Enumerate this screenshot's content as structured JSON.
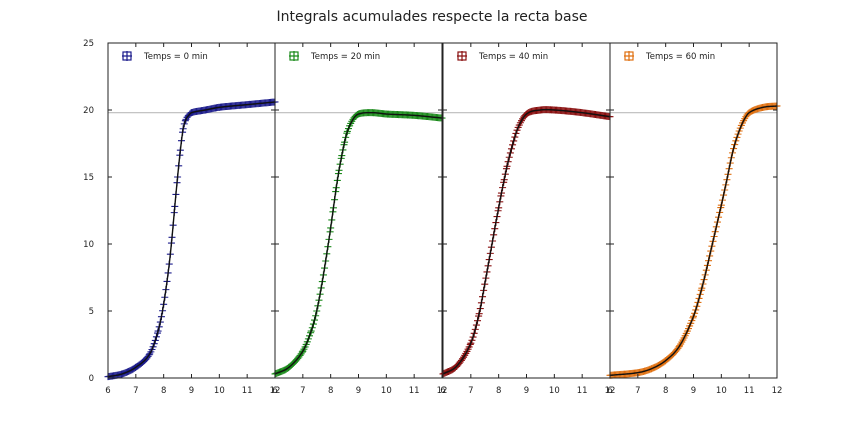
{
  "chart_data": {
    "type": "scatter",
    "title": "Integrals acumulades respecte la recta base",
    "xlabel": "",
    "ylabel": "",
    "ylim": [
      0,
      25
    ],
    "yticks": [
      0,
      5,
      10,
      15,
      20,
      25
    ],
    "xticks": [
      6,
      7,
      8,
      9,
      10,
      11,
      12
    ],
    "baseline_y": 19.8,
    "grid": false,
    "legend_placement": "top-left",
    "panels": [
      {
        "legend": "Temps = 0 min",
        "color": "#1c1c8c",
        "xlim": [
          6,
          12
        ],
        "x": [
          6.0,
          6.5,
          7.0,
          7.5,
          7.8,
          8.0,
          8.2,
          8.3,
          8.4,
          8.5,
          8.6,
          8.7,
          8.8,
          8.9,
          9.0,
          9.5,
          10.0,
          11.0,
          12.0
        ],
        "y": [
          0.1,
          0.3,
          0.8,
          1.8,
          3.5,
          5.5,
          8.5,
          10.5,
          12.8,
          15.0,
          17.0,
          18.6,
          19.3,
          19.6,
          19.8,
          20.0,
          20.2,
          20.4,
          20.6
        ]
      },
      {
        "legend": "Temps = 20 min",
        "color": "#1a8a1a",
        "xlim": [
          6,
          12
        ],
        "x": [
          6.0,
          6.5,
          7.0,
          7.3,
          7.5,
          7.7,
          7.9,
          8.0,
          8.1,
          8.2,
          8.3,
          8.4,
          8.5,
          8.6,
          8.8,
          9.0,
          9.5,
          10.0,
          11.0,
          12.0
        ],
        "y": [
          0.3,
          0.8,
          2.0,
          3.5,
          5.0,
          7.2,
          9.8,
          11.2,
          12.7,
          14.2,
          15.5,
          16.6,
          17.6,
          18.4,
          19.3,
          19.7,
          19.8,
          19.7,
          19.6,
          19.4
        ]
      },
      {
        "legend": "Temps = 40 min",
        "color": "#8a1010",
        "xlim": [
          6,
          12
        ],
        "x": [
          6.0,
          6.5,
          7.0,
          7.3,
          7.5,
          7.7,
          7.9,
          8.0,
          8.1,
          8.2,
          8.3,
          8.5,
          8.7,
          9.0,
          9.5,
          10.0,
          11.0,
          12.0
        ],
        "y": [
          0.3,
          0.9,
          2.6,
          4.8,
          7.0,
          9.3,
          11.6,
          12.7,
          13.8,
          14.8,
          15.8,
          17.4,
          18.7,
          19.7,
          20.0,
          20.0,
          19.8,
          19.5
        ]
      },
      {
        "legend": "Temps = 60 min",
        "color": "#e07010",
        "xlim": [
          6,
          12
        ],
        "x": [
          6.0,
          7.0,
          7.5,
          8.0,
          8.5,
          9.0,
          9.3,
          9.5,
          9.7,
          9.9,
          10.0,
          10.2,
          10.4,
          10.6,
          10.8,
          11.0,
          11.5,
          12.0
        ],
        "y": [
          0.2,
          0.4,
          0.7,
          1.3,
          2.4,
          4.6,
          6.7,
          8.4,
          10.2,
          12.0,
          12.9,
          14.8,
          16.8,
          18.2,
          19.2,
          19.8,
          20.2,
          20.3
        ]
      }
    ]
  }
}
